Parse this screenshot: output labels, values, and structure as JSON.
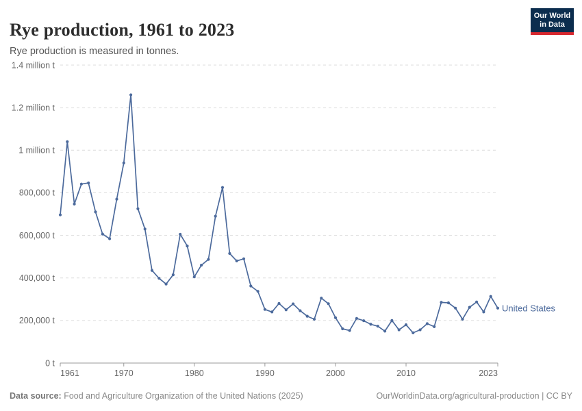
{
  "header": {
    "title": "Rye production, 1961 to 2023",
    "subtitle": "Rye production is measured in tonnes.",
    "logo_line1": "Our World",
    "logo_line2": "in Data"
  },
  "footer": {
    "source_label": "Data source:",
    "source_text": " Food and Agriculture Organization of the United Nations (2025)",
    "credit": "OurWorldinData.org/agricultural-production | CC BY"
  },
  "chart_data": {
    "type": "line",
    "title": "Rye production, 1961 to 2023",
    "xlabel": "",
    "ylabel": "",
    "unit": "tonnes",
    "grid": "horizontal-dashed",
    "legend_position": "end-of-line-label",
    "xlim": [
      1961,
      2023
    ],
    "ylim": [
      0,
      1400000
    ],
    "x_ticks": [
      1961,
      1970,
      1980,
      1990,
      2000,
      2010,
      2023
    ],
    "y_ticks": [
      {
        "value": 0,
        "label": "0 t"
      },
      {
        "value": 200000,
        "label": "200,000 t"
      },
      {
        "value": 400000,
        "label": "400,000 t"
      },
      {
        "value": 600000,
        "label": "600,000 t"
      },
      {
        "value": 800000,
        "label": "800,000 t"
      },
      {
        "value": 1000000,
        "label": "1 million t"
      },
      {
        "value": 1200000,
        "label": "1.2 million t"
      },
      {
        "value": 1400000,
        "label": "1.4 million t"
      }
    ],
    "colors": {
      "line": "#4c6a9c",
      "gridline": "#dcdcdc",
      "axis": "#999999",
      "tick_label": "#666666"
    },
    "series": [
      {
        "name": "United States",
        "color": "#4c6a9c",
        "x": [
          1961,
          1962,
          1963,
          1964,
          1965,
          1966,
          1967,
          1968,
          1969,
          1970,
          1971,
          1972,
          1973,
          1974,
          1975,
          1976,
          1977,
          1978,
          1979,
          1980,
          1981,
          1982,
          1983,
          1984,
          1985,
          1986,
          1987,
          1988,
          1989,
          1990,
          1991,
          1992,
          1993,
          1994,
          1995,
          1996,
          1997,
          1998,
          1999,
          2000,
          2001,
          2002,
          2003,
          2004,
          2005,
          2006,
          2007,
          2008,
          2009,
          2010,
          2011,
          2012,
          2013,
          2014,
          2015,
          2016,
          2017,
          2018,
          2019,
          2020,
          2021,
          2022,
          2023
        ],
        "values": [
          696000,
          1040000,
          747000,
          841000,
          846000,
          710000,
          606000,
          584000,
          770000,
          940000,
          1260000,
          725000,
          630000,
          435000,
          398000,
          371000,
          415000,
          605000,
          550000,
          405000,
          460000,
          487000,
          690000,
          825000,
          515000,
          480000,
          490000,
          362000,
          337000,
          252000,
          240000,
          280000,
          250000,
          278000,
          246000,
          220000,
          206000,
          305000,
          279000,
          213000,
          161000,
          153000,
          210000,
          199000,
          182000,
          173000,
          150000,
          200000,
          156000,
          180000,
          142000,
          156000,
          185000,
          171000,
          285000,
          283000,
          258000,
          206000,
          262000,
          287000,
          240000,
          313000,
          258000
        ]
      }
    ]
  }
}
